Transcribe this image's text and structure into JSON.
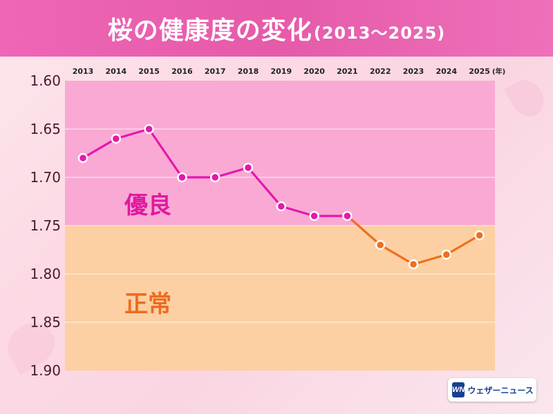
{
  "header": {
    "title": "桜の健康度の変化",
    "range": "(2013〜2025)"
  },
  "colors": {
    "header_bg": "#e95db0",
    "zone_good_bg": "#f9a9d3",
    "zone_normal_bg": "#fcd0a2",
    "line_good": "#e617ac",
    "line_normal": "#ef6f1d",
    "label_good": "#e0189f",
    "label_normal": "#ef6a1f"
  },
  "chart_data": {
    "type": "line",
    "title": "桜の健康度の変化(2013〜2025)",
    "x_unit": "(年)",
    "categories": [
      "2013",
      "2014",
      "2015",
      "2016",
      "2017",
      "2018",
      "2019",
      "2020",
      "2021",
      "2022",
      "2023",
      "2024",
      "2025"
    ],
    "values": [
      1.68,
      1.66,
      1.65,
      1.7,
      1.7,
      1.69,
      1.73,
      1.74,
      1.74,
      1.77,
      1.79,
      1.78,
      1.76
    ],
    "ylim": [
      1.6,
      1.9
    ],
    "y_reversed": true,
    "y_ticks": [
      "1.60",
      "1.65",
      "1.70",
      "1.75",
      "1.80",
      "1.85",
      "1.90"
    ],
    "zones": [
      {
        "label": "優良",
        "from": 1.6,
        "to": 1.75
      },
      {
        "label": "正常",
        "from": 1.75,
        "to": 1.9
      }
    ],
    "grid": true
  },
  "branding": {
    "logo_mark": "WN",
    "logo_text": "ウェザーニュース"
  }
}
